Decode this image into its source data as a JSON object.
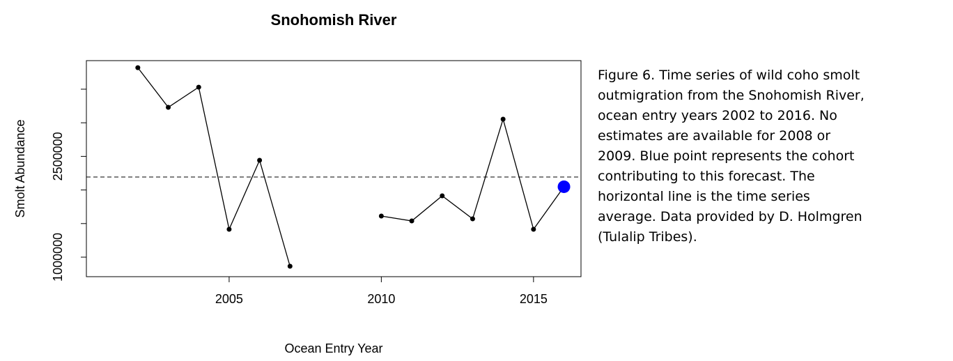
{
  "chart_data": {
    "type": "line",
    "title": "Snohomish River",
    "xlabel": "Ocean Entry Year",
    "ylabel": "Smolt Abundance",
    "x": [
      2002,
      2003,
      2004,
      2005,
      2006,
      2007,
      2008,
      2009,
      2010,
      2011,
      2012,
      2013,
      2014,
      2015,
      2016
    ],
    "values": [
      3820000,
      3230000,
      3530000,
      1415000,
      2442000,
      865000,
      null,
      null,
      1612000,
      1539000,
      1913000,
      1570000,
      3054000,
      1415000,
      2048000
    ],
    "color": "#000000",
    "highlight_color": "#0000ff",
    "average": 2193000,
    "xlim": [
      2000.31,
      2016.56
    ],
    "xticks": [
      2005,
      2010,
      2015
    ],
    "ylim": [
      709600,
      3925000
    ],
    "yticks": [
      1000000,
      {
        "value": 1500000,
        "label": null
      },
      {
        "value": 2000000,
        "label": null
      },
      2500000,
      {
        "value": 3000000,
        "label": null
      },
      {
        "value": 3500000,
        "label": null
      }
    ]
  },
  "caption_lines": [
    "Figure 6. Time series of wild coho smolt",
    "outmigration from the Snohomish River,",
    "ocean entry years 2002 to 2016. No",
    "estimates are available for 2008 or",
    "2009. Blue point represents the cohort",
    "contributing to this forecast. The",
    "horizontal line is the time series",
    "average. Data provided by D. Holmgren",
    "(Tulalip Tribes)."
  ]
}
